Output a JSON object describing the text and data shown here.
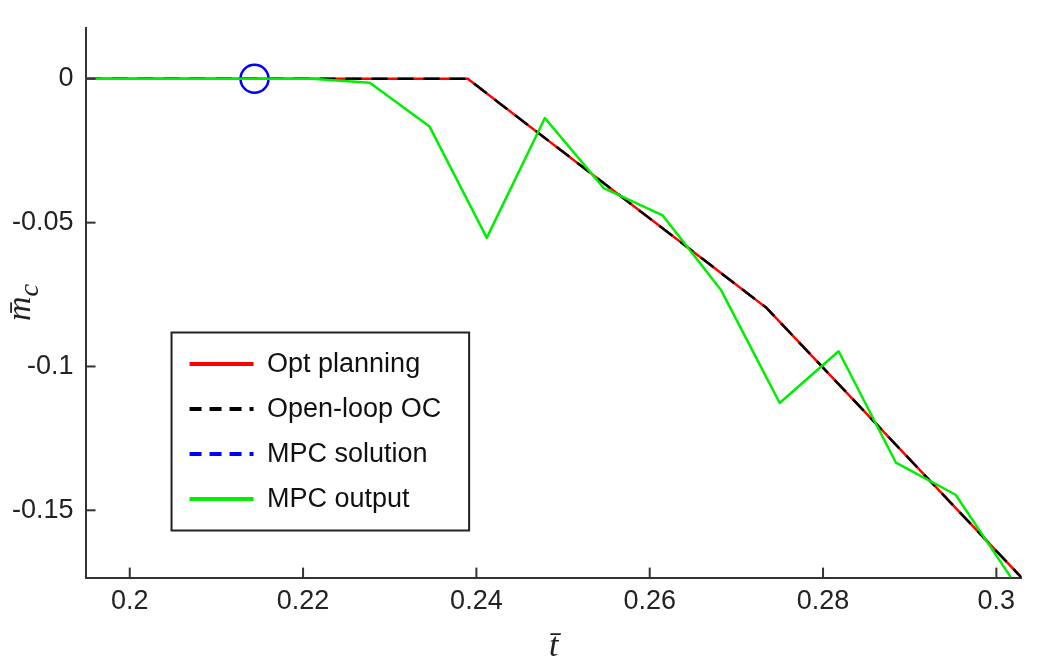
{
  "chart_data": {
    "type": "line",
    "xlabel": "t̄",
    "ylabel": "m̄$_{c}$",
    "xlim": [
      0.1949,
      0.3029
    ],
    "ylim": [
      -0.1734,
      0.0176
    ],
    "xticks": [
      0.2,
      0.22,
      0.24,
      0.26,
      0.28,
      0.3
    ],
    "yticks": [
      -0.15,
      -0.1,
      -0.05,
      0
    ],
    "grid": false,
    "legend": "bottom left",
    "marker": "none",
    "series": [
      {
        "name": "Opt planning",
        "color": "#ff0000",
        "line_style": "solid",
        "x": [
          0.1949,
          0.239,
          0.2735,
          0.3029
        ],
        "values": [
          0,
          0,
          -0.0797,
          -0.1734
        ]
      },
      {
        "name": "Open-loop OC",
        "color": "#000000",
        "line_style": "dashed",
        "x": [
          0.1949,
          0.239,
          0.2735,
          0.3029
        ],
        "values": [
          0,
          0,
          -0.0797,
          -0.1734
        ]
      },
      {
        "name": "MPC solution",
        "color": "#0000ff",
        "line_style": "dashed",
        "marker": "circle",
        "x": [
          0.2144
        ],
        "values": [
          0
        ]
      },
      {
        "name": "MPC output",
        "color": "#00ee00",
        "line_style": "solid",
        "x": [
          0.1949,
          0.221,
          0.2277,
          0.2346,
          0.2412,
          0.2479,
          0.2547,
          0.2615,
          0.2682,
          0.275,
          0.2818,
          0.2884,
          0.2953,
          0.3017
        ],
        "values": [
          0,
          0,
          -0.0014,
          -0.0166,
          -0.0553,
          -0.0136,
          -0.038,
          -0.0475,
          -0.0733,
          -0.1127,
          -0.0947,
          -0.1334,
          -0.1446,
          -0.1734
        ]
      }
    ]
  }
}
